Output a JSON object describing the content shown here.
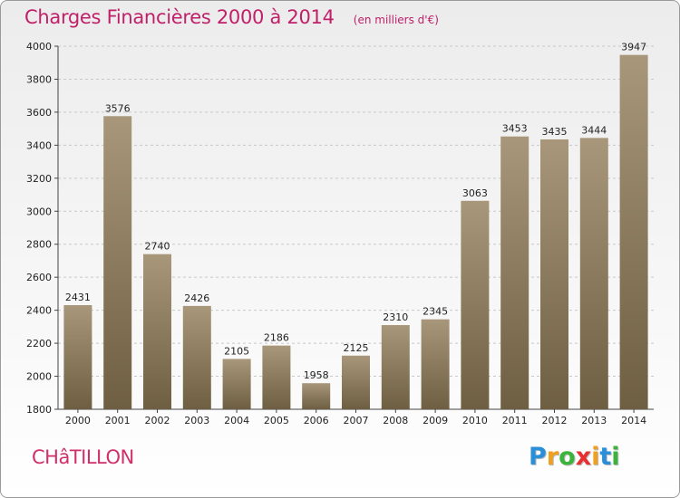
{
  "chart_data": {
    "type": "bar",
    "title": "Charges Financières 2000 à 2014",
    "subtitle": "(en milliers d'€)",
    "categories": [
      "2000",
      "2001",
      "2002",
      "2003",
      "2004",
      "2005",
      "2006",
      "2007",
      "2008",
      "2009",
      "2010",
      "2011",
      "2012",
      "2013",
      "2014"
    ],
    "values": [
      2431,
      3576,
      2740,
      2426,
      2105,
      2186,
      1958,
      2125,
      2310,
      2345,
      3063,
      3453,
      3435,
      3444,
      3947
    ],
    "ylim": [
      1800,
      4000
    ],
    "yticks": [
      1800,
      2000,
      2200,
      2400,
      2600,
      2800,
      3000,
      3200,
      3400,
      3600,
      3800,
      4000
    ],
    "grid": "horizontal",
    "bar_color_top": "#a8977a",
    "bar_color_bottom": "#6e5e42"
  },
  "footer": {
    "city": "CHâTILLON",
    "logo": {
      "letters": [
        "P",
        "r",
        "o",
        "x",
        "i",
        "t",
        "i"
      ],
      "colors": [
        "#2a8fd8",
        "#f0a020",
        "#3cb43c",
        "#e83030",
        "#f0a020",
        "#2a8fd8",
        "#3cb43c"
      ]
    }
  }
}
